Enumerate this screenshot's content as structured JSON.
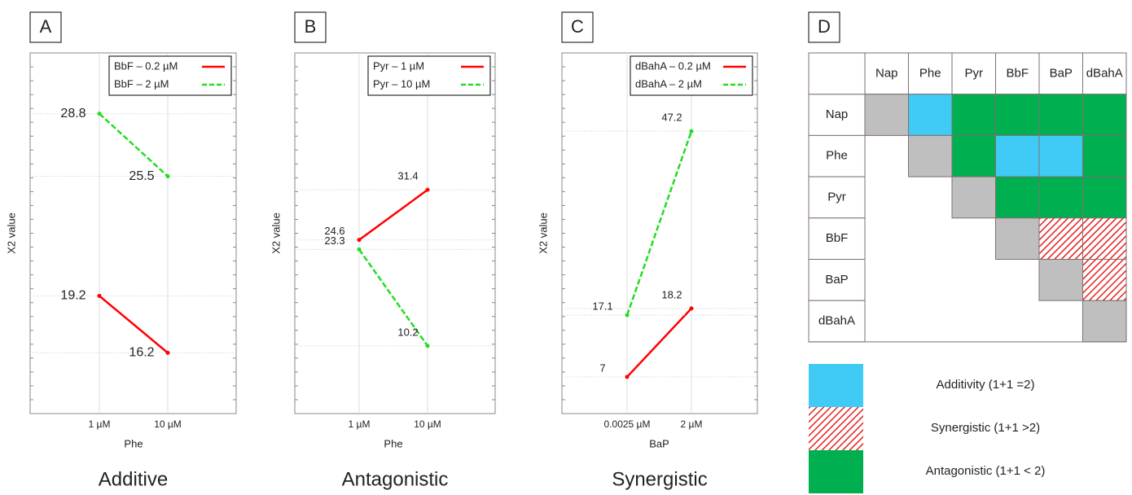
{
  "chart_data": [
    {
      "type": "line",
      "label": "A",
      "caption": "Additive",
      "x_label": "Phe",
      "y_label": "X2 value",
      "categories": [
        "1 µM",
        "10 µM"
      ],
      "ylim": [
        13,
        32
      ],
      "legend": "top-right",
      "series": [
        {
          "name": "BbF – 0.2 µM",
          "color": "#ff0000",
          "dash": false,
          "values": [
            19.2,
            16.2
          ]
        },
        {
          "name": "BbF – 2 µM",
          "color": "#22dd22",
          "dash": true,
          "values": [
            28.8,
            25.5
          ]
        }
      ]
    },
    {
      "type": "line",
      "label": "B",
      "caption": "Antagonistic",
      "x_label": "Phe",
      "y_label": "X2 value",
      "categories": [
        "1 µM",
        "10 µM"
      ],
      "ylim": [
        1,
        50
      ],
      "legend": "top-right",
      "series": [
        {
          "name": "Pyr – 1 µM",
          "color": "#ff0000",
          "dash": false,
          "values": [
            24.6,
            31.4
          ]
        },
        {
          "name": "Pyr – 10 µM",
          "color": "#22dd22",
          "dash": true,
          "values": [
            23.3,
            10.2
          ]
        }
      ]
    },
    {
      "type": "line",
      "label": "C",
      "caption": "Synergistic",
      "x_label": "BaP",
      "y_label": "X2 value",
      "categories": [
        "0.0025 µM",
        "2 µM"
      ],
      "ylim": [
        1,
        60
      ],
      "legend": "top-right",
      "series": [
        {
          "name": "dBahA – 0.2 µM",
          "color": "#ff0000",
          "dash": false,
          "values": [
            7.0,
            18.2
          ]
        },
        {
          "name": "dBahA – 2 µM",
          "color": "#22dd22",
          "dash": true,
          "values": [
            17.1,
            47.2
          ]
        }
      ]
    },
    {
      "type": "matrix",
      "label": "D",
      "labels": [
        "Nap",
        "Phe",
        "Pyr",
        "BbF",
        "BaP",
        "dBahA"
      ],
      "cells": [
        [
          "#bfbfbf",
          "#3fcbf5",
          "#00b050",
          "#00b050",
          "#00b050",
          "#00b050"
        ],
        [
          null,
          "#bfbfbf",
          "#00b050",
          "#3fcbf5",
          "#3fcbf5",
          "#00b050"
        ],
        [
          null,
          null,
          "#bfbfbf",
          "#00b050",
          "#00b050",
          "#00b050"
        ],
        [
          null,
          null,
          null,
          "#bfbfbf",
          "#ff0000",
          "#ff0000"
        ],
        [
          null,
          null,
          null,
          null,
          "#bfbfbf",
          "#ff0000"
        ],
        [
          null,
          null,
          null,
          null,
          null,
          "#bfbfbf"
        ]
      ],
      "legend_items": [
        {
          "name": "Additivity (1+1 =2)",
          "color": "#3fcbf5",
          "pattern": "solid"
        },
        {
          "name": "Synergistic (1+1 >2)",
          "color": "#ff0000",
          "pattern": "hatch"
        },
        {
          "name": "Antagonistic (1+1 < 2)",
          "color": "#00b050",
          "pattern": "solid"
        }
      ]
    }
  ]
}
